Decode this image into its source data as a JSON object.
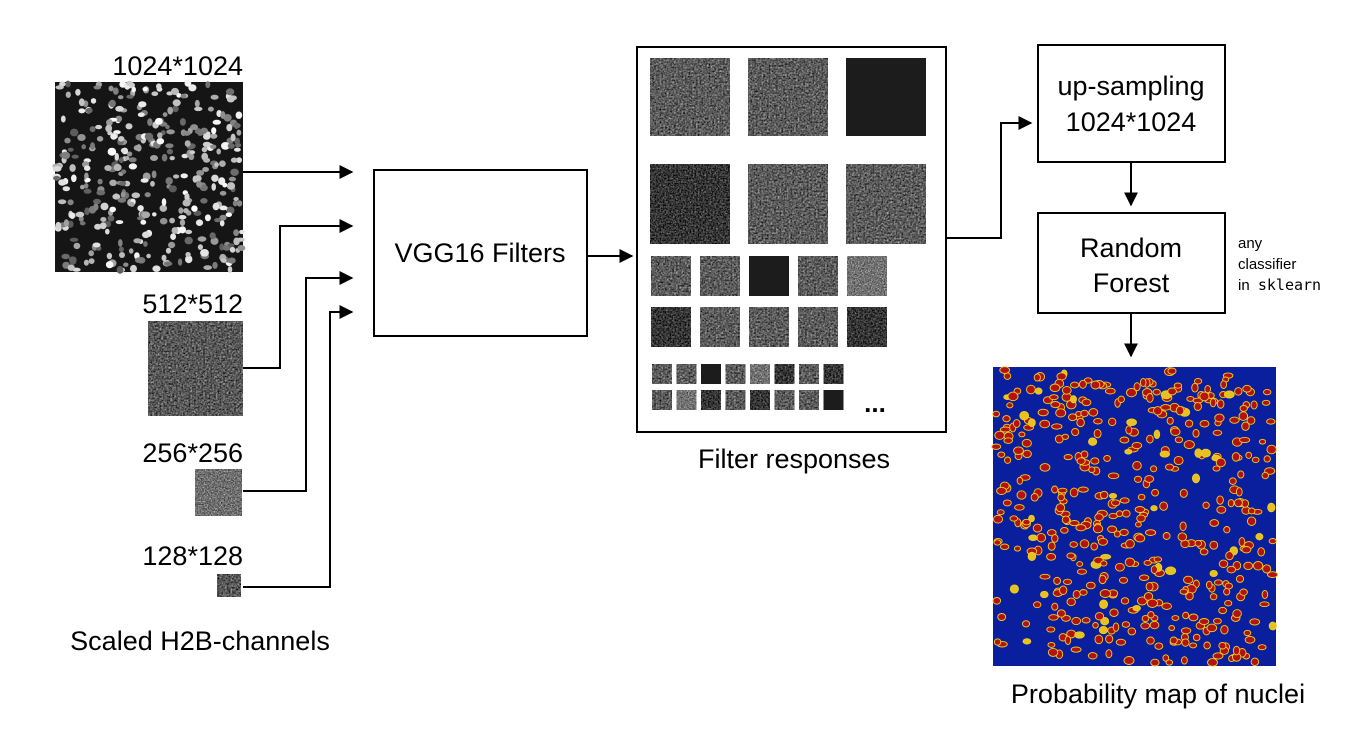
{
  "inputs": {
    "caption": "Scaled H2B-channels",
    "scales": [
      {
        "label": "1024*1024"
      },
      {
        "label": "512*512"
      },
      {
        "label": "256*256"
      },
      {
        "label": "128*128"
      }
    ]
  },
  "vgg": {
    "label": "VGG16 Filters"
  },
  "responses": {
    "caption": "Filter responses",
    "ellipsis": "..."
  },
  "upsampling": {
    "line1": "up-sampling",
    "line2": "1024*1024"
  },
  "classifier": {
    "line1": "Random",
    "line2": "Forest",
    "note_line1": "any",
    "note_line2": "classifier",
    "note_line3_prefix": "in",
    "note_line3_code": "sklearn"
  },
  "output": {
    "caption": "Probability map of nuclei"
  },
  "colors": {
    "map_background": "#0a1f9e",
    "nuclei": "#b31212",
    "nuclei_edge": "#f0d020",
    "microscopy_background": "#151515"
  }
}
